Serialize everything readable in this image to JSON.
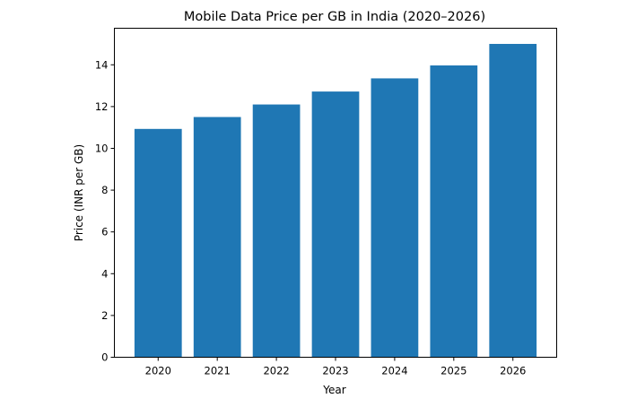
{
  "chart_data": {
    "type": "bar",
    "title": "Mobile Data Price per GB in India (2020–2026)",
    "xlabel": "Year",
    "ylabel": "Price (INR per GB)",
    "categories": [
      "2020",
      "2021",
      "2022",
      "2023",
      "2024",
      "2025",
      "2026"
    ],
    "values": [
      10.93,
      11.5,
      12.1,
      12.72,
      13.35,
      13.97,
      15.0
    ],
    "ylim": [
      0,
      15.75
    ],
    "yticks": [
      0,
      2,
      4,
      6,
      8,
      10,
      12,
      14
    ],
    "grid": false,
    "bar_color": "#1f77b4"
  }
}
